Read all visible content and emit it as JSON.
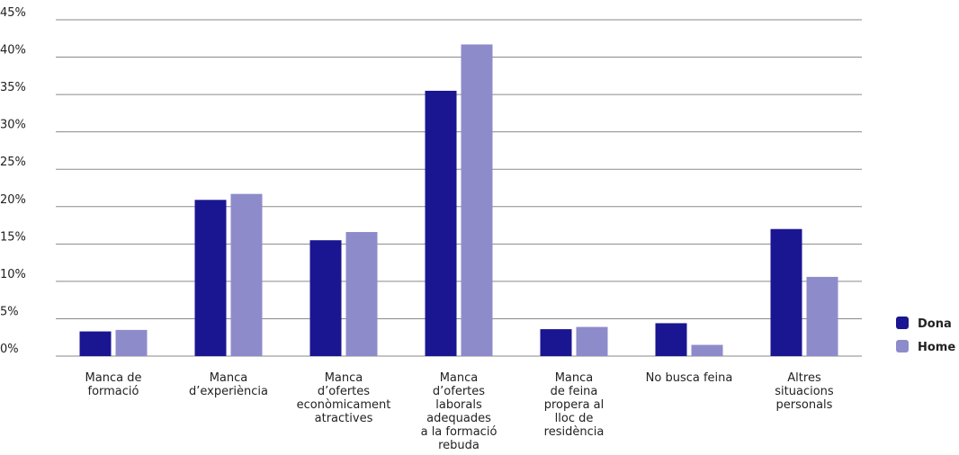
{
  "chart_data": {
    "type": "bar",
    "categories": [
      [
        "Manca de",
        "formació"
      ],
      [
        "Manca",
        "d’experiència"
      ],
      [
        "Manca",
        "d’ofertes",
        "econòmicament",
        "atractives"
      ],
      [
        "Manca",
        "d’ofertes",
        "laborals",
        "adequades",
        "a la formació",
        "rebuda"
      ],
      [
        "Manca",
        "de feina",
        "propera al",
        "lloc de",
        "residència"
      ],
      [
        "No busca feina"
      ],
      [
        "Altres",
        "situacions",
        "personals"
      ]
    ],
    "series": [
      {
        "name": "Dona",
        "color": "#1a1591",
        "values": [
          3.3,
          20.9,
          15.5,
          35.5,
          3.6,
          4.4,
          17.0
        ]
      },
      {
        "name": "Home",
        "color": "#8e8bcb",
        "values": [
          3.5,
          21.7,
          16.6,
          41.7,
          3.9,
          1.5,
          10.6
        ]
      }
    ],
    "y_ticks": [
      "0%",
      "5%",
      "10%",
      "15%",
      "20%",
      "25%",
      "30%",
      "35%",
      "40%",
      "45%"
    ],
    "ylim": [
      0,
      45
    ],
    "grid": true,
    "legend_position": "right",
    "title": "",
    "xlabel": "",
    "ylabel": ""
  }
}
